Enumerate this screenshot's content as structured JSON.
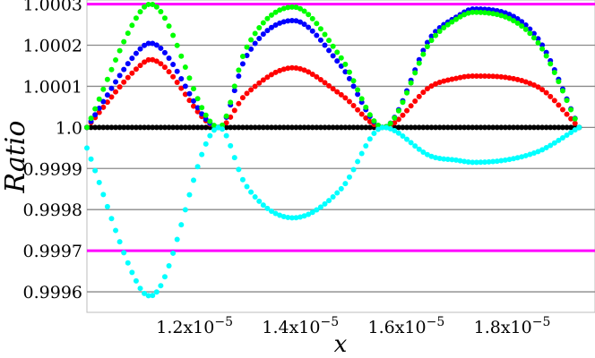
{
  "chart_data": {
    "type": "scatter",
    "title": "",
    "xlabel": "x",
    "ylabel": "Ratio",
    "xlim": [
      1e-05,
      1.96e-05
    ],
    "ylim": [
      0.99955,
      1.00031
    ],
    "x_ticks": [
      {
        "value": 1.2e-05,
        "mantissa": "1.2x10",
        "exp": "−5"
      },
      {
        "value": 1.4e-05,
        "mantissa": "1.4x10",
        "exp": "−5"
      },
      {
        "value": 1.6e-05,
        "mantissa": "1.6x10",
        "exp": "−5"
      },
      {
        "value": 1.8e-05,
        "mantissa": "1.8x10",
        "exp": "−5"
      }
    ],
    "y_ticks": [
      {
        "value": 1.0003,
        "label": "1.0003"
      },
      {
        "value": 1.0002,
        "label": "1.0002"
      },
      {
        "value": 1.0001,
        "label": "1.0001"
      },
      {
        "value": 1.0,
        "label": "1.0"
      },
      {
        "value": 0.9999,
        "label": "0.9999"
      },
      {
        "value": 0.9998,
        "label": "0.9998"
      },
      {
        "value": 0.9997,
        "label": "0.9997"
      },
      {
        "value": 0.9996,
        "label": "0.9996"
      }
    ],
    "grid": "horizontal",
    "reference_lines": [
      {
        "y": 1.0003,
        "color": "#ff00ff"
      },
      {
        "y": 0.9997,
        "color": "#ff00ff"
      }
    ],
    "grid_color": "#8a8a8a",
    "series_colors": [
      "#000000",
      "#ff0000",
      "#0000ff",
      "#00ff00",
      "#00ffff"
    ],
    "x": [
      1e-05,
      1.1e-05,
      1.12e-05,
      1.25e-05,
      1.3e-05,
      1.39e-05,
      1.48e-05,
      1.56e-05,
      1.65e-05,
      1.7e-05,
      1.73e-05,
      1.85e-05,
      1.93e-05
    ],
    "series": [
      {
        "color": "#000000",
        "values": [
          1.0,
          1.0,
          1.0,
          1.0,
          1.0,
          1.0,
          1.0,
          1.0,
          1.0,
          1.0,
          1.0,
          1.0,
          1.0
        ]
      },
      {
        "color": "#ff0000",
        "values": [
          1.0,
          1.00015,
          1.000165,
          1.0,
          1.00008,
          1.000145,
          1.00008,
          1.0,
          1.0001,
          1.00012,
          1.000125,
          1.0001,
          1.0
        ]
      },
      {
        "color": "#0000ff",
        "values": [
          1.0,
          1.00019,
          1.000205,
          1.0,
          1.00017,
          1.00026,
          1.00015,
          1.0,
          1.00022,
          1.00027,
          1.000288,
          1.00022,
          1.0
        ]
      },
      {
        "color": "#00ff00",
        "values": [
          1.0,
          1.00028,
          1.0003,
          1.0,
          1.00019,
          1.000293,
          1.00017,
          1.0,
          1.00021,
          1.000265,
          1.00028,
          1.00021,
          1.0
        ]
      },
      {
        "color": "#00ffff",
        "values": [
          0.99995,
          0.99961,
          0.99959,
          1.0,
          0.99986,
          0.99978,
          0.99985,
          1.0,
          0.99993,
          0.99992,
          0.999915,
          0.99994,
          1.0
        ]
      }
    ]
  }
}
